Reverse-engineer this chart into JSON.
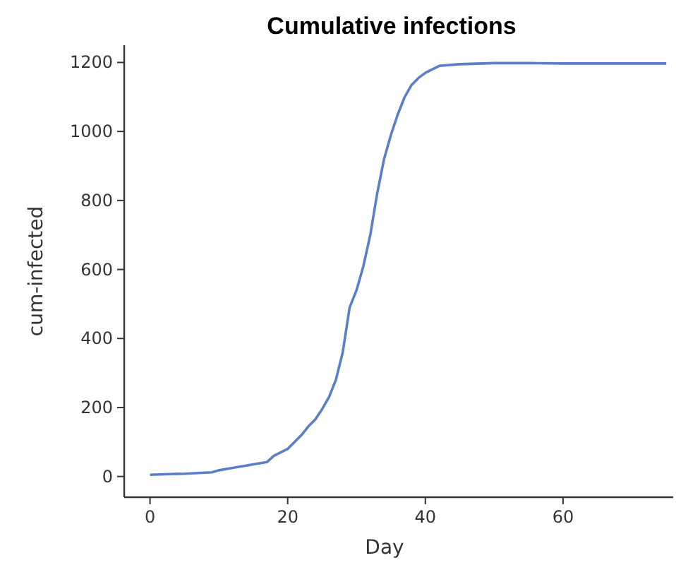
{
  "chart_data": {
    "type": "line",
    "title": "Cumulative infections",
    "xlabel": "Day",
    "ylabel": "cum-infected",
    "x": [
      0,
      3,
      5,
      8,
      9,
      10,
      12,
      15,
      17,
      18,
      20,
      21,
      22,
      23,
      24,
      25,
      26,
      27,
      28,
      29,
      30,
      31,
      32,
      33,
      34,
      35,
      36,
      37,
      38,
      39,
      40,
      42,
      45,
      50,
      55,
      60,
      75
    ],
    "series": [
      {
        "color": "#5b7ec6",
        "values": [
          5,
          7,
          8,
          11,
          12,
          18,
          25,
          35,
          42,
          60,
          80,
          100,
          120,
          145,
          165,
          195,
          230,
          280,
          360,
          490,
          540,
          610,
          700,
          820,
          920,
          990,
          1050,
          1100,
          1135,
          1155,
          1170,
          1190,
          1195,
          1198,
          1198,
          1197,
          1197
        ]
      }
    ],
    "xlim": [
      -3.75,
      76
    ],
    "ylim": [
      -60,
      1250
    ],
    "xticks": [
      0,
      20,
      40,
      60
    ],
    "yticks": [
      0,
      200,
      400,
      600,
      800,
      1000,
      1200
    ],
    "grid": false,
    "marker": "none",
    "line_style": "solid"
  }
}
